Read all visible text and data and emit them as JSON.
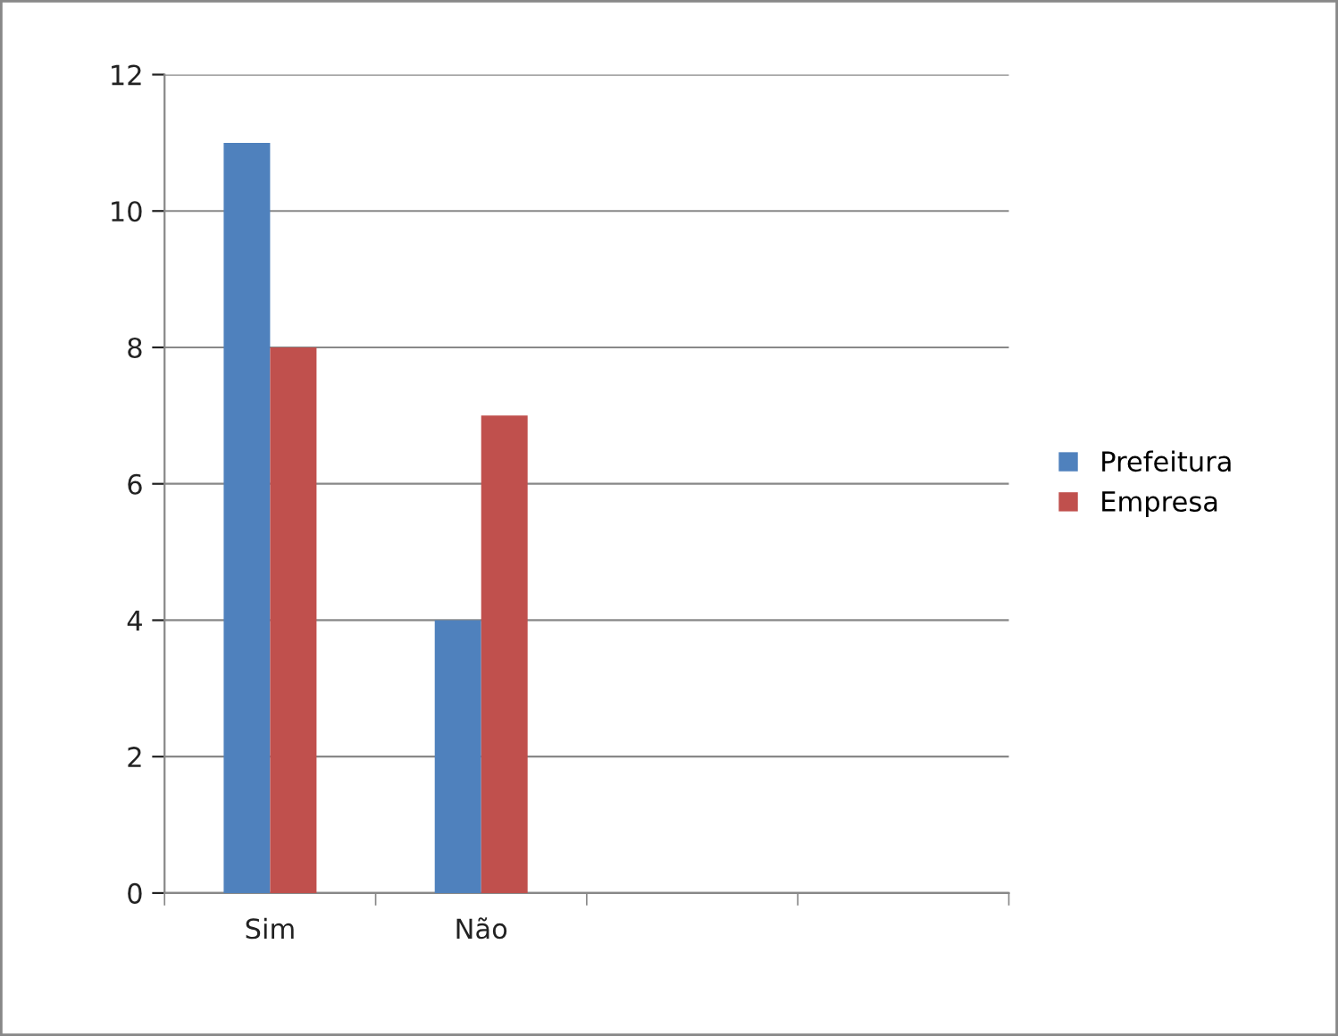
{
  "chart_data": {
    "type": "bar",
    "categories": [
      "Sim",
      "Não",
      null,
      null
    ],
    "series": [
      {
        "name": "Prefeitura",
        "color": "#4f81bd",
        "values": [
          11,
          4,
          null,
          null
        ]
      },
      {
        "name": "Empresa",
        "color": "#c0504d",
        "values": [
          8,
          7,
          null,
          null
        ]
      }
    ],
    "ylim": [
      0,
      12
    ],
    "yticks": [
      0,
      2,
      4,
      6,
      8,
      10,
      12
    ],
    "grid": "y",
    "legend": "right"
  }
}
